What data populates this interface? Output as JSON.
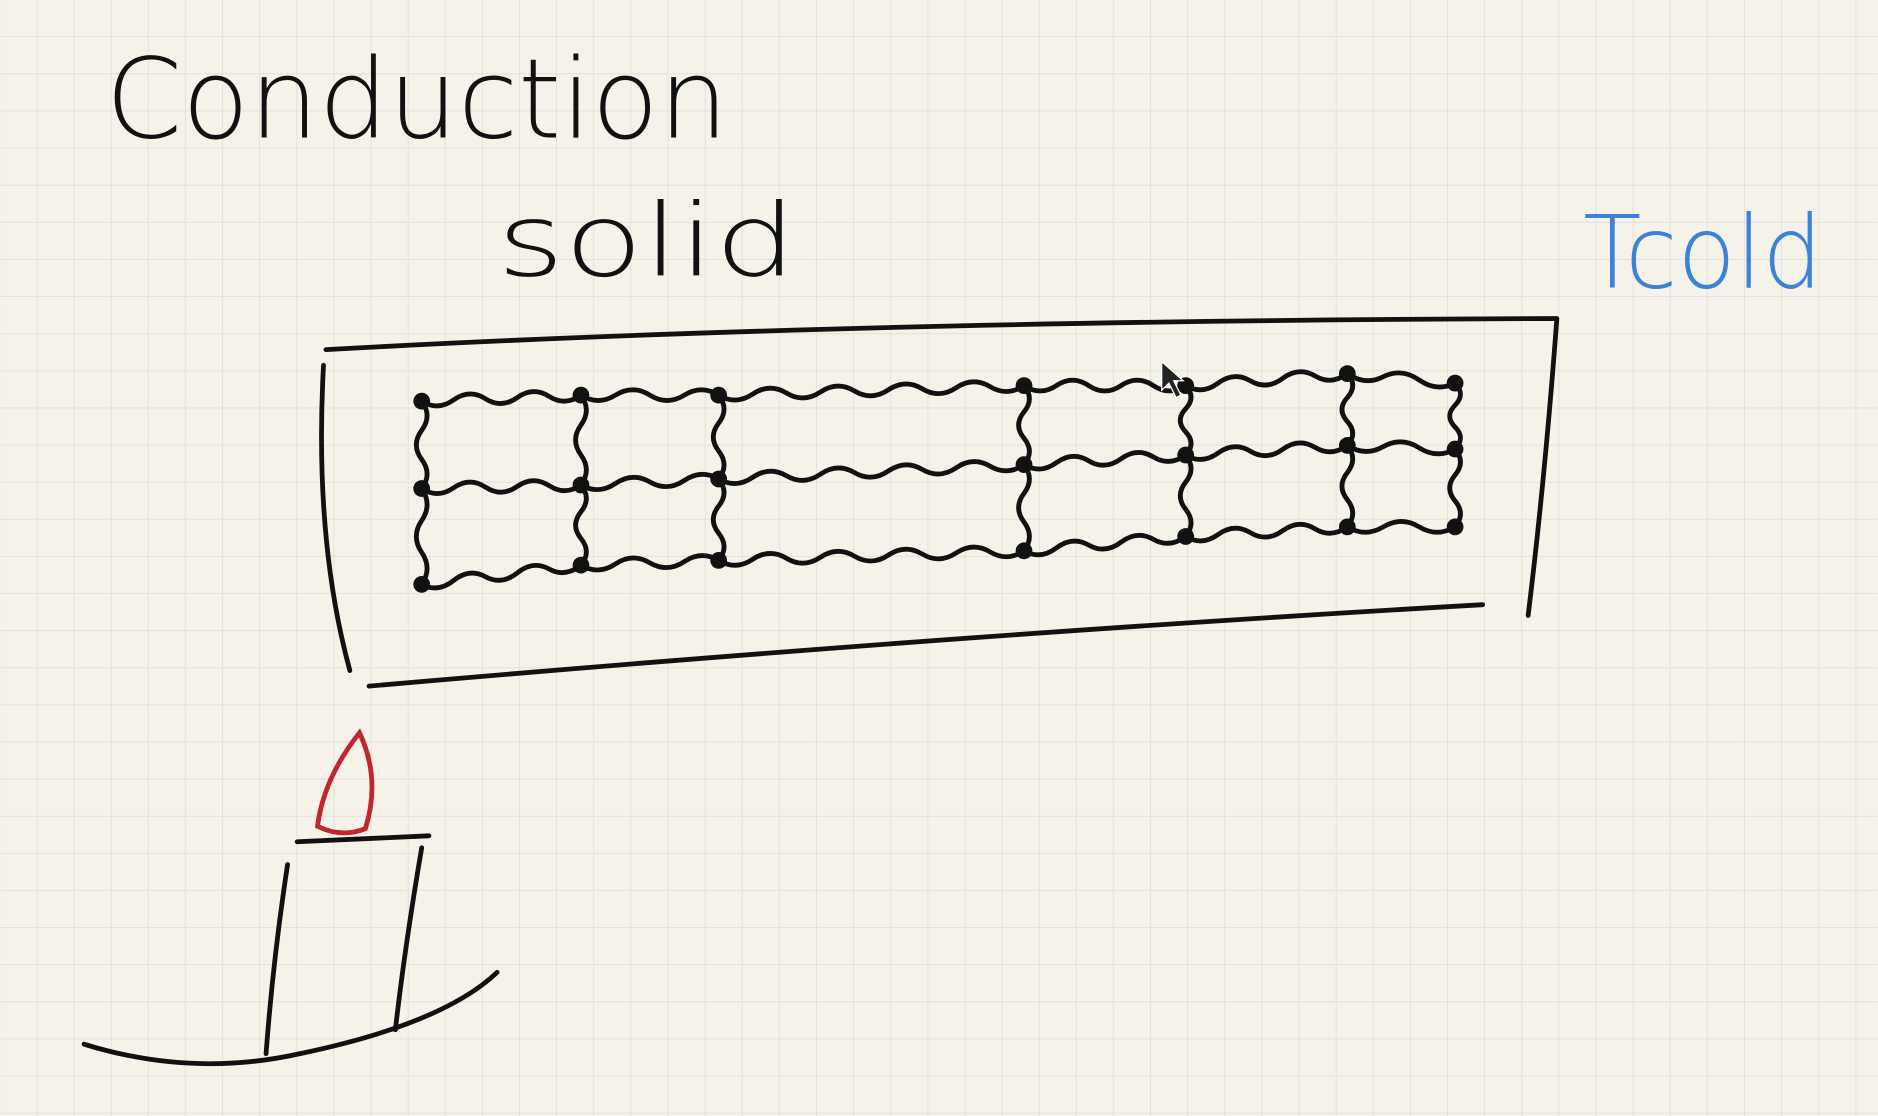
{
  "title": "Conduction",
  "subtitle": "solid",
  "label": "Tcold"
}
